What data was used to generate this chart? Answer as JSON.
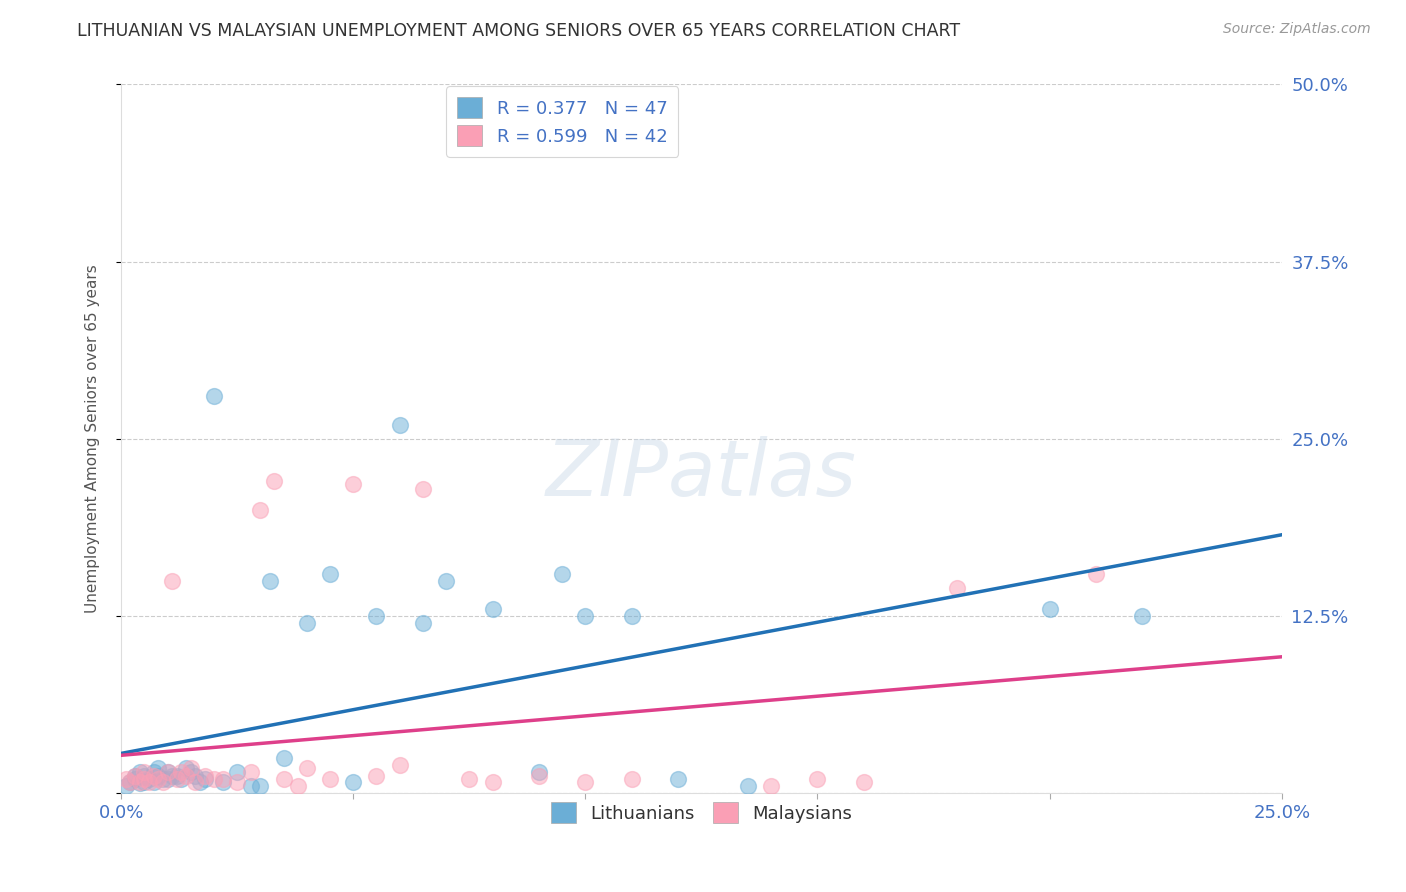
{
  "title": "LITHUANIAN VS MALAYSIAN UNEMPLOYMENT AMONG SENIORS OVER 65 YEARS CORRELATION CHART",
  "source": "Source: ZipAtlas.com",
  "ylabel": "Unemployment Among Seniors over 65 years",
  "xlim": [
    0.0,
    0.25
  ],
  "ylim": [
    0.0,
    0.5
  ],
  "xticks": [
    0.0,
    0.05,
    0.1,
    0.15,
    0.2,
    0.25
  ],
  "yticks": [
    0.0,
    0.125,
    0.25,
    0.375,
    0.5
  ],
  "xtick_labels": [
    "0.0%",
    "",
    "",
    "",
    "",
    "25.0%"
  ],
  "ytick_labels": [
    "",
    "12.5%",
    "25.0%",
    "37.5%",
    "50.0%"
  ],
  "R_lit": 0.377,
  "N_lit": 47,
  "R_mal": 0.599,
  "N_mal": 42,
  "lit_color": "#6baed6",
  "mal_color": "#fa9fb5",
  "lit_line_color": "#2171b5",
  "mal_line_color": "#de3f8a",
  "background_color": "#ffffff",
  "watermark": "ZIPatlas",
  "lit_x": [
    0.001,
    0.002,
    0.003,
    0.003,
    0.004,
    0.004,
    0.005,
    0.005,
    0.006,
    0.007,
    0.007,
    0.008,
    0.008,
    0.009,
    0.01,
    0.01,
    0.011,
    0.012,
    0.013,
    0.014,
    0.015,
    0.016,
    0.017,
    0.018,
    0.02,
    0.022,
    0.025,
    0.028,
    0.03,
    0.032,
    0.035,
    0.04,
    0.045,
    0.05,
    0.055,
    0.06,
    0.065,
    0.07,
    0.08,
    0.09,
    0.095,
    0.1,
    0.11,
    0.12,
    0.135,
    0.2,
    0.22
  ],
  "lit_y": [
    0.005,
    0.008,
    0.01,
    0.012,
    0.007,
    0.015,
    0.008,
    0.012,
    0.01,
    0.008,
    0.015,
    0.012,
    0.018,
    0.01,
    0.015,
    0.01,
    0.012,
    0.012,
    0.01,
    0.018,
    0.015,
    0.012,
    0.008,
    0.01,
    0.28,
    0.008,
    0.015,
    0.005,
    0.005,
    0.15,
    0.025,
    0.12,
    0.155,
    0.008,
    0.125,
    0.26,
    0.12,
    0.15,
    0.13,
    0.015,
    0.155,
    0.125,
    0.125,
    0.01,
    0.005,
    0.13,
    0.125
  ],
  "mal_x": [
    0.001,
    0.002,
    0.003,
    0.004,
    0.005,
    0.005,
    0.006,
    0.007,
    0.008,
    0.009,
    0.01,
    0.011,
    0.012,
    0.013,
    0.014,
    0.015,
    0.016,
    0.018,
    0.02,
    0.022,
    0.025,
    0.028,
    0.03,
    0.033,
    0.035,
    0.038,
    0.04,
    0.045,
    0.05,
    0.055,
    0.06,
    0.065,
    0.075,
    0.08,
    0.09,
    0.1,
    0.11,
    0.14,
    0.15,
    0.16,
    0.18,
    0.21
  ],
  "mal_y": [
    0.01,
    0.008,
    0.012,
    0.008,
    0.015,
    0.01,
    0.008,
    0.012,
    0.01,
    0.008,
    0.015,
    0.15,
    0.01,
    0.015,
    0.012,
    0.018,
    0.008,
    0.012,
    0.01,
    0.01,
    0.008,
    0.015,
    0.2,
    0.22,
    0.01,
    0.005,
    0.018,
    0.01,
    0.218,
    0.012,
    0.02,
    0.215,
    0.01,
    0.008,
    0.012,
    0.008,
    0.01,
    0.005,
    0.01,
    0.008,
    0.145,
    0.155
  ]
}
